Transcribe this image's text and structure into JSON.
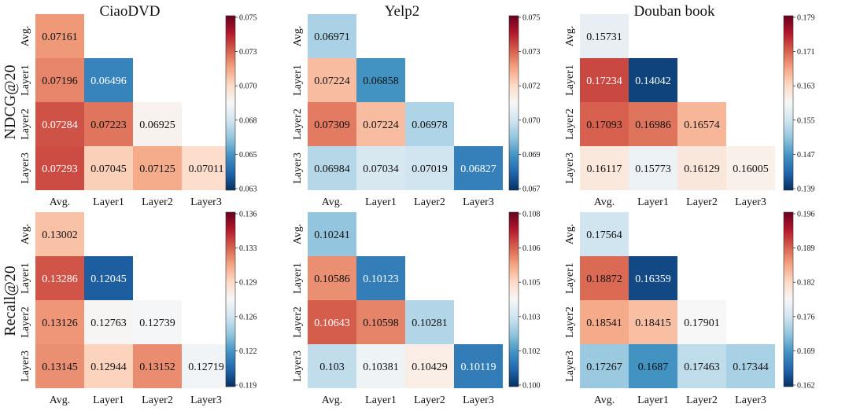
{
  "figure": {
    "col_titles": [
      "CiaoDVD",
      "Yelp2",
      "Douban book"
    ],
    "row_titles": [
      "NDCG@20",
      "Recall@20"
    ]
  },
  "colormap": {
    "name": "RdBu_r",
    "stops": [
      "#053061",
      "#2166ac",
      "#4393c3",
      "#92c5de",
      "#d1e5f0",
      "#f7f7f7",
      "#fddbc7",
      "#f4a582",
      "#d6604d",
      "#b2182b",
      "#67001f"
    ]
  },
  "chart_data": [
    {
      "type": "heatmap",
      "title": "CiaoDVD",
      "ylabel": "NDCG@20",
      "x_ticks": [
        "Avg.",
        "Layer1",
        "Layer2",
        "Layer3"
      ],
      "y_ticks": [
        "Avg.",
        "Layer1",
        "Layer2",
        "Layer3"
      ],
      "labels": [
        [
          "0.07161"
        ],
        [
          "0.07196",
          "0.06496"
        ],
        [
          "0.07284",
          "0.07223",
          "0.06925"
        ],
        [
          "0.07293",
          "0.07045",
          "0.07125",
          "0.07011"
        ]
      ],
      "vmin": 0.063,
      "vmax": 0.075,
      "colorbar_ticks": [
        "0.075",
        "0.073",
        "0.070",
        "0.068",
        "0.065",
        "0.063"
      ]
    },
    {
      "type": "heatmap",
      "title": "Yelp2",
      "ylabel": "NDCG@20",
      "x_ticks": [
        "Avg.",
        "Layer1",
        "Layer2",
        "Layer3"
      ],
      "y_ticks": [
        "Avg.",
        "Layer1",
        "Layer2",
        "Layer3"
      ],
      "labels": [
        [
          "0.06971"
        ],
        [
          "0.07224",
          "0.06858"
        ],
        [
          "0.07309",
          "0.07224",
          "0.06978"
        ],
        [
          "0.06984",
          "0.07034",
          "0.07019",
          "0.06827"
        ]
      ],
      "vmin": 0.067,
      "vmax": 0.075,
      "colorbar_ticks": [
        "0.075",
        "0.073",
        "0.072",
        "0.070",
        "0.069",
        "0.067"
      ]
    },
    {
      "type": "heatmap",
      "title": "Douban book",
      "ylabel": "NDCG@20",
      "x_ticks": [
        "Avg.",
        "Layer1",
        "Layer2",
        "Layer3"
      ],
      "y_ticks": [
        "Avg.",
        "Layer1",
        "Layer2",
        "Layer3"
      ],
      "labels": [
        [
          "0.15731"
        ],
        [
          "0.17234",
          "0.14042"
        ],
        [
          "0.17093",
          "0.16986",
          "0.16574"
        ],
        [
          "0.16117",
          "0.15773",
          "0.16129",
          "0.16005"
        ]
      ],
      "vmin": 0.139,
      "vmax": 0.179,
      "colorbar_ticks": [
        "0.179",
        "0.171",
        "0.163",
        "0.155",
        "0.147",
        "0.139"
      ]
    },
    {
      "type": "heatmap",
      "title": "CiaoDVD",
      "ylabel": "Recall@20",
      "x_ticks": [
        "Avg.",
        "Layer1",
        "Layer2",
        "Layer3"
      ],
      "y_ticks": [
        "Avg.",
        "Layer1",
        "Layer2",
        "Layer3"
      ],
      "labels": [
        [
          "0.13002"
        ],
        [
          "0.13286",
          "0.12045"
        ],
        [
          "0.13126",
          "0.12763",
          "0.12739"
        ],
        [
          "0.13145",
          "0.12944",
          "0.13152",
          "0.12719"
        ]
      ],
      "vmin": 0.119,
      "vmax": 0.136,
      "colorbar_ticks": [
        "0.136",
        "0.133",
        "0.129",
        "0.126",
        "0.122",
        "0.119"
      ]
    },
    {
      "type": "heatmap",
      "title": "Yelp2",
      "ylabel": "Recall@20",
      "x_ticks": [
        "Avg.",
        "Layer1",
        "Layer2",
        "Layer3"
      ],
      "y_ticks": [
        "Avg.",
        "Layer1",
        "Layer2",
        "Layer3"
      ],
      "labels": [
        [
          "0.10241"
        ],
        [
          "0.10586",
          "0.10123"
        ],
        [
          "0.10643",
          "0.10598",
          "0.10281"
        ],
        [
          "0.103",
          "0.10381",
          "0.10429",
          "0.10119"
        ]
      ],
      "vmin": 0.1,
      "vmax": 0.108,
      "colorbar_ticks": [
        "0.108",
        "0.106",
        "0.105",
        "0.103",
        "0.102",
        "0.100"
      ]
    },
    {
      "type": "heatmap",
      "title": "Douban book",
      "ylabel": "Recall@20",
      "x_ticks": [
        "Avg.",
        "Layer1",
        "Layer2",
        "Layer3"
      ],
      "y_ticks": [
        "Avg.",
        "Layer1",
        "Layer2",
        "Layer3"
      ],
      "labels": [
        [
          "0.17564"
        ],
        [
          "0.18872",
          "0.16359"
        ],
        [
          "0.18541",
          "0.18415",
          "0.17901"
        ],
        [
          "0.17267",
          "0.1687",
          "0.17463",
          "0.17344"
        ]
      ],
      "vmin": 0.162,
      "vmax": 0.196,
      "colorbar_ticks": [
        "0.196",
        "0.189",
        "0.182",
        "0.176",
        "0.169",
        "0.162"
      ]
    }
  ]
}
